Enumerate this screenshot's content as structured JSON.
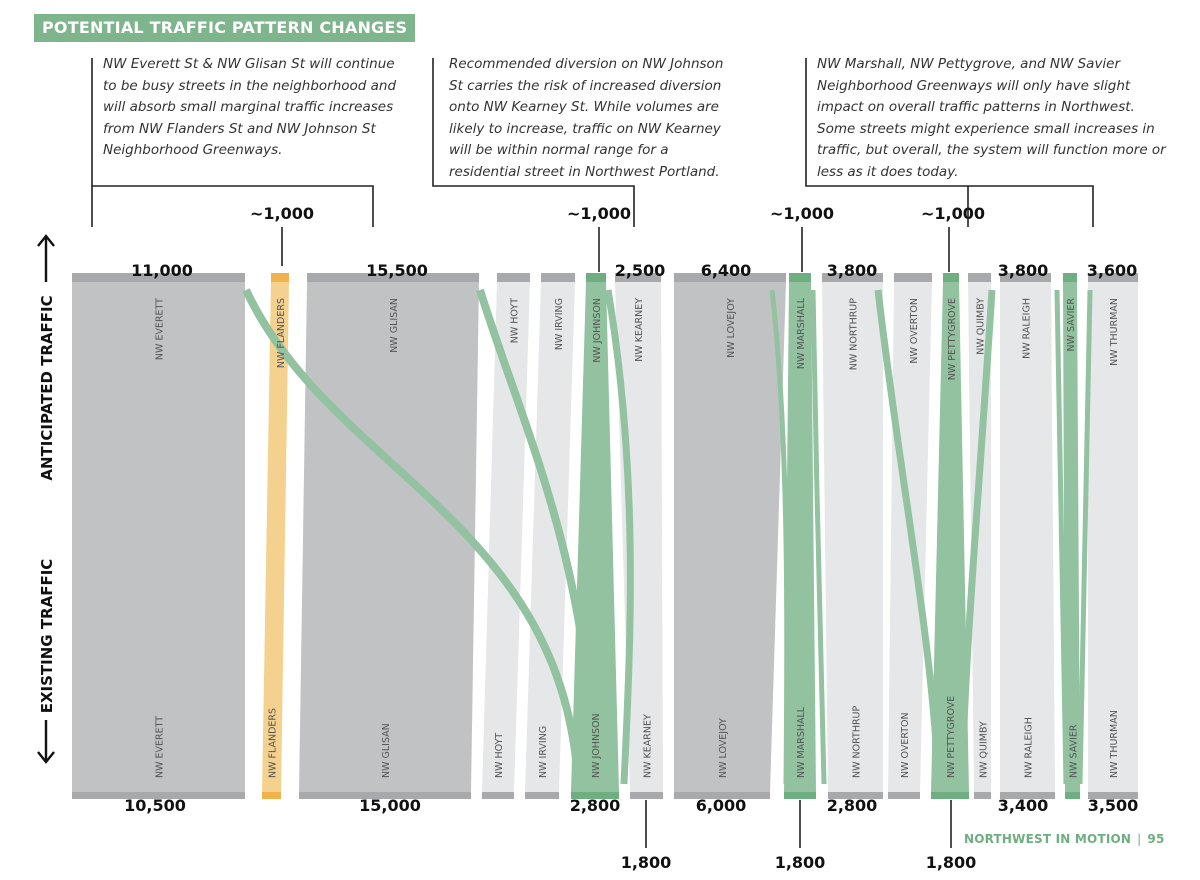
{
  "title": "POTENTIAL TRAFFIC PATTERN CHANGES",
  "notes": [
    "NW Everett St & NW Glisan St will continue to be busy streets in the neighborhood and will absorb small marginal traffic increases from NW Flanders St and NW Johnson St Neighborhood Greenways.",
    "Recommended diversion on NW Johnson St carries the risk of increased diversion onto NW Kearney St. While volumes are likely to increase, traffic on NW Kearney will be within normal range for a residential street in Northwest Portland.",
    "NW Marshall, NW Pettygrove, and NW Savier Neighborhood Greenways will only have slight impact on overall traffic patterns in Northwest. Some streets might experience small increases in traffic, but overall, the system will function more or less as it does today."
  ],
  "axis_labels": {
    "top": "ANTICIPATED TRAFFIC",
    "bottom": "EXISTING TRAFFIC"
  },
  "colors": {
    "major": "#c1c2c4",
    "minor": "#e6e7e8",
    "greenway": "#92c2a0",
    "flanders": "#f5d18f",
    "cap": "#a7a9ac",
    "green_cap": "#6fae80",
    "orange_cap": "#f0b24a",
    "accent": "#7fb58c"
  },
  "chart_data": {
    "type": "sankey",
    "streets": [
      {
        "name": "NW EVERETT",
        "kind": "major",
        "anticipated": "11,000",
        "existing": "10,500"
      },
      {
        "name": "NW FLANDERS",
        "kind": "flanders",
        "anticipated": "",
        "existing": ""
      },
      {
        "name": "NW GLISAN",
        "kind": "major",
        "anticipated": "15,500",
        "existing": "15,000"
      },
      {
        "name": "NW HOYT",
        "kind": "minor",
        "anticipated": "",
        "existing": ""
      },
      {
        "name": "NW IRVING",
        "kind": "minor",
        "anticipated": "",
        "existing": ""
      },
      {
        "name": "NW JOHNSON",
        "kind": "greenway",
        "anticipated": "",
        "existing": "2,800"
      },
      {
        "name": "NW KEARNEY",
        "kind": "minor",
        "anticipated": "2,500",
        "existing": "1,800"
      },
      {
        "name": "NW LOVEJOY",
        "kind": "major",
        "anticipated": "6,400",
        "existing": "6,000"
      },
      {
        "name": "NW MARSHALL",
        "kind": "greenway",
        "anticipated": "~1,000",
        "existing": "1,800"
      },
      {
        "name": "NW NORTHRUP",
        "kind": "minor",
        "anticipated": "3,800",
        "existing": "2,800"
      },
      {
        "name": "NW OVERTON",
        "kind": "minor",
        "anticipated": "",
        "existing": ""
      },
      {
        "name": "NW PETTYGROVE",
        "kind": "greenway",
        "anticipated": "~1,000",
        "existing": "1,800"
      },
      {
        "name": "NW QUIMBY",
        "kind": "minor",
        "anticipated": "",
        "existing": ""
      },
      {
        "name": "NW RALEIGH",
        "kind": "minor",
        "anticipated": "3,800",
        "existing": "3,400"
      },
      {
        "name": "NW SAVIER",
        "kind": "greenway",
        "anticipated": "",
        "existing": ""
      },
      {
        "name": "NW THURMAN",
        "kind": "minor",
        "anticipated": "3,600",
        "existing": "3,500"
      }
    ],
    "callout_labels": {
      "flanders": "~1,000",
      "johnson": "~1,000"
    }
  },
  "footer": {
    "brand": "NORTHWEST IN MOTION",
    "page": "95"
  }
}
